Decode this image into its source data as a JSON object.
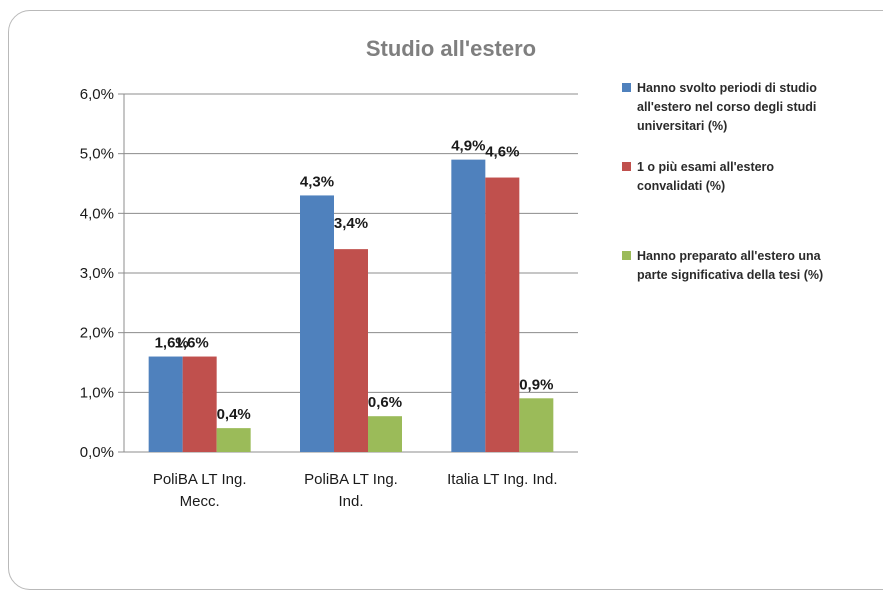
{
  "chart_data": {
    "type": "bar",
    "title": "Studio all'estero",
    "categories": [
      [
        "PoliBA LT Ing.",
        "Mecc."
      ],
      [
        "PoliBA LT Ing.",
        "Ind."
      ],
      [
        "Italia LT Ing. Ind."
      ]
    ],
    "series": [
      {
        "name": "Hanno svolto periodi di studio all'estero nel corso degli studi universitari (%)",
        "legend_lines": [
          "Hanno svolto periodi di studio",
          "all'estero nel corso degli studi",
          "universitari (%)"
        ],
        "color": "#4f81bd",
        "values": [
          1.6,
          4.3,
          4.9
        ],
        "labels": [
          "1,6%",
          "4,3%",
          "4,9%"
        ]
      },
      {
        "name": "1 o più esami all'estero convalidati (%)",
        "legend_lines": [
          "1 o più esami all'estero",
          "convalidati (%)"
        ],
        "color": "#c0504d",
        "values": [
          1.6,
          3.4,
          4.6
        ],
        "labels": [
          "1,6%",
          "3,4%",
          "4,6%"
        ]
      },
      {
        "name": "Hanno preparato all'estero una parte significativa della tesi (%)",
        "legend_lines": [
          "Hanno preparato all'estero una",
          "parte significativa della tesi (%)"
        ],
        "color": "#9bbb59",
        "values": [
          0.4,
          0.6,
          0.9
        ],
        "labels": [
          "0,4%",
          "0,6%",
          "0,9%"
        ]
      }
    ],
    "y_ticks": [
      "0,0%",
      "1,0%",
      "2,0%",
      "3,0%",
      "4,0%",
      "5,0%",
      "6,0%"
    ],
    "ylim": [
      0,
      6
    ],
    "ylabel": "",
    "xlabel": "",
    "grid": true,
    "legend_position": "right"
  }
}
